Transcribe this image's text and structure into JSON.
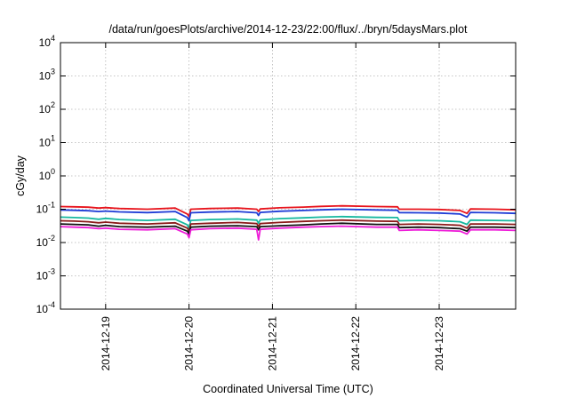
{
  "chart_data": {
    "type": "line",
    "title": "/data/run/goesPlots/archive/2014-12-23/22:00/flux/../bryn/5daysMars.plot",
    "xlabel": "Coordinated Universal Time (UTC)",
    "ylabel": "cGy/day",
    "y_scale": "log",
    "ylim_exponents": [
      -4,
      4
    ],
    "y_ticks": [
      {
        "base": "10",
        "exp": "-4",
        "value": -4
      },
      {
        "base": "10",
        "exp": "-3",
        "value": -3
      },
      {
        "base": "10",
        "exp": "-2",
        "value": -2
      },
      {
        "base": "10",
        "exp": "-1",
        "value": -1
      },
      {
        "base": "10",
        "exp": "0",
        "value": 0
      },
      {
        "base": "10",
        "exp": "1",
        "value": 1
      },
      {
        "base": "10",
        "exp": "2",
        "value": 2
      },
      {
        "base": "10",
        "exp": "3",
        "value": 3
      },
      {
        "base": "10",
        "exp": "4",
        "value": 4
      }
    ],
    "xlim": [
      "2014-12-18T11:00",
      "2014-12-23T22:00"
    ],
    "x_ticks": [
      {
        "label": "2014-12-19",
        "value": "2014-12-19T00:00"
      },
      {
        "label": "2014-12-20",
        "value": "2014-12-20T00:00"
      },
      {
        "label": "2014-12-21",
        "value": "2014-12-21T00:00"
      },
      {
        "label": "2014-12-22",
        "value": "2014-12-22T00:00"
      },
      {
        "label": "2014-12-23",
        "value": "2014-12-23T00:00"
      }
    ],
    "grid": true,
    "series": [
      {
        "color": "#e8141c",
        "x": [
          "2014-12-18T11:00",
          "2014-12-18T15:00",
          "2014-12-18T19:00",
          "2014-12-18T22:00",
          "2014-12-19T00:00",
          "2014-12-19T04:00",
          "2014-12-19T12:00",
          "2014-12-19T20:00",
          "2014-12-19T23:30",
          "2014-12-20T00:00",
          "2014-12-20T00:30",
          "2014-12-20T06:00",
          "2014-12-20T14:00",
          "2014-12-20T19:30",
          "2014-12-20T20:00",
          "2014-12-20T20:30",
          "2014-12-21T02:00",
          "2014-12-21T09:00",
          "2014-12-21T14:00",
          "2014-12-21T20:00",
          "2014-12-22T06:00",
          "2014-12-22T12:00",
          "2014-12-22T12:30",
          "2014-12-22T18:00",
          "2014-12-23T00:00",
          "2014-12-23T06:00",
          "2014-12-23T08:00",
          "2014-12-23T09:00",
          "2014-12-23T16:00",
          "2014-12-23T22:00"
        ],
        "y": [
          0.12,
          0.118,
          0.115,
          0.108,
          0.112,
          0.105,
          0.1,
          0.108,
          0.072,
          0.06,
          0.1,
          0.105,
          0.108,
          0.1,
          0.085,
          0.102,
          0.11,
          0.116,
          0.122,
          0.126,
          0.12,
          0.118,
          0.1,
          0.1,
          0.098,
          0.092,
          0.075,
          0.102,
          0.1,
          0.096
        ]
      },
      {
        "color": "#1e3cd6",
        "x": [
          "2014-12-18T11:00",
          "2014-12-18T15:00",
          "2014-12-18T19:00",
          "2014-12-18T22:00",
          "2014-12-19T00:00",
          "2014-12-19T04:00",
          "2014-12-19T12:00",
          "2014-12-19T20:00",
          "2014-12-19T23:30",
          "2014-12-20T00:00",
          "2014-12-20T00:30",
          "2014-12-20T06:00",
          "2014-12-20T14:00",
          "2014-12-20T19:30",
          "2014-12-20T20:00",
          "2014-12-20T20:30",
          "2014-12-21T02:00",
          "2014-12-21T09:00",
          "2014-12-21T14:00",
          "2014-12-21T20:00",
          "2014-12-22T06:00",
          "2014-12-22T12:00",
          "2014-12-22T12:30",
          "2014-12-22T18:00",
          "2014-12-23T00:00",
          "2014-12-23T06:00",
          "2014-12-23T08:00",
          "2014-12-23T09:00",
          "2014-12-23T16:00",
          "2014-12-23T22:00"
        ],
        "y": [
          0.095,
          0.093,
          0.09,
          0.085,
          0.088,
          0.083,
          0.079,
          0.085,
          0.056,
          0.045,
          0.078,
          0.082,
          0.085,
          0.078,
          0.065,
          0.08,
          0.087,
          0.092,
          0.096,
          0.1,
          0.095,
          0.093,
          0.079,
          0.078,
          0.077,
          0.072,
          0.058,
          0.08,
          0.078,
          0.075
        ]
      },
      {
        "color": "#16b8a0",
        "x": [
          "2014-12-18T11:00",
          "2014-12-18T15:00",
          "2014-12-18T19:00",
          "2014-12-18T22:00",
          "2014-12-19T00:00",
          "2014-12-19T04:00",
          "2014-12-19T12:00",
          "2014-12-19T20:00",
          "2014-12-19T23:30",
          "2014-12-20T00:00",
          "2014-12-20T00:30",
          "2014-12-20T06:00",
          "2014-12-20T14:00",
          "2014-12-20T19:30",
          "2014-12-20T20:00",
          "2014-12-20T20:30",
          "2014-12-21T02:00",
          "2014-12-21T09:00",
          "2014-12-21T14:00",
          "2014-12-21T20:00",
          "2014-12-22T06:00",
          "2014-12-22T12:00",
          "2014-12-22T12:30",
          "2014-12-22T18:00",
          "2014-12-23T00:00",
          "2014-12-23T06:00",
          "2014-12-23T08:00",
          "2014-12-23T09:00",
          "2014-12-23T16:00",
          "2014-12-23T22:00"
        ],
        "y": [
          0.058,
          0.056,
          0.054,
          0.05,
          0.053,
          0.049,
          0.046,
          0.05,
          0.034,
          0.027,
          0.046,
          0.049,
          0.051,
          0.047,
          0.038,
          0.048,
          0.052,
          0.055,
          0.058,
          0.06,
          0.057,
          0.056,
          0.045,
          0.046,
          0.045,
          0.042,
          0.035,
          0.047,
          0.046,
          0.045
        ]
      },
      {
        "color": "#8b1a1a",
        "x": [
          "2014-12-18T11:00",
          "2014-12-18T15:00",
          "2014-12-18T19:00",
          "2014-12-18T22:00",
          "2014-12-19T00:00",
          "2014-12-19T04:00",
          "2014-12-19T12:00",
          "2014-12-19T20:00",
          "2014-12-19T23:30",
          "2014-12-20T00:00",
          "2014-12-20T00:30",
          "2014-12-20T06:00",
          "2014-12-20T14:00",
          "2014-12-20T19:30",
          "2014-12-20T20:00",
          "2014-12-20T20:30",
          "2014-12-21T02:00",
          "2014-12-21T09:00",
          "2014-12-21T14:00",
          "2014-12-21T20:00",
          "2014-12-22T06:00",
          "2014-12-22T12:00",
          "2014-12-22T12:30",
          "2014-12-22T18:00",
          "2014-12-23T00:00",
          "2014-12-23T06:00",
          "2014-12-23T08:00",
          "2014-12-23T09:00",
          "2014-12-23T16:00",
          "2014-12-23T22:00"
        ],
        "y": [
          0.045,
          0.044,
          0.042,
          0.039,
          0.041,
          0.038,
          0.036,
          0.039,
          0.027,
          0.022,
          0.036,
          0.038,
          0.04,
          0.037,
          0.03,
          0.037,
          0.04,
          0.043,
          0.045,
          0.047,
          0.044,
          0.043,
          0.035,
          0.036,
          0.035,
          0.033,
          0.027,
          0.036,
          0.036,
          0.035
        ]
      },
      {
        "color": "#111111",
        "x": [
          "2014-12-18T11:00",
          "2014-12-18T15:00",
          "2014-12-18T19:00",
          "2014-12-18T22:00",
          "2014-12-19T00:00",
          "2014-12-19T04:00",
          "2014-12-19T12:00",
          "2014-12-19T20:00",
          "2014-12-19T23:30",
          "2014-12-20T00:00",
          "2014-12-20T00:30",
          "2014-12-20T06:00",
          "2014-12-20T14:00",
          "2014-12-20T19:30",
          "2014-12-20T20:00",
          "2014-12-20T20:30",
          "2014-12-21T02:00",
          "2014-12-21T09:00",
          "2014-12-21T14:00",
          "2014-12-21T20:00",
          "2014-12-22T06:00",
          "2014-12-22T12:00",
          "2014-12-22T12:30",
          "2014-12-22T18:00",
          "2014-12-23T00:00",
          "2014-12-23T06:00",
          "2014-12-23T08:00",
          "2014-12-23T09:00",
          "2014-12-23T16:00",
          "2014-12-23T22:00"
        ],
        "y": [
          0.036,
          0.035,
          0.034,
          0.031,
          0.033,
          0.03,
          0.029,
          0.031,
          0.022,
          0.018,
          0.029,
          0.031,
          0.032,
          0.03,
          0.024,
          0.03,
          0.032,
          0.034,
          0.036,
          0.038,
          0.035,
          0.035,
          0.028,
          0.029,
          0.028,
          0.026,
          0.022,
          0.029,
          0.029,
          0.028
        ]
      },
      {
        "color": "#ee1cd8",
        "x": [
          "2014-12-18T11:00",
          "2014-12-18T15:00",
          "2014-12-18T19:00",
          "2014-12-18T22:00",
          "2014-12-19T00:00",
          "2014-12-19T04:00",
          "2014-12-19T12:00",
          "2014-12-19T20:00",
          "2014-12-19T23:30",
          "2014-12-20T00:00",
          "2014-12-20T00:30",
          "2014-12-20T06:00",
          "2014-12-20T14:00",
          "2014-12-20T19:30",
          "2014-12-20T20:00",
          "2014-12-20T20:30",
          "2014-12-21T02:00",
          "2014-12-21T09:00",
          "2014-12-21T14:00",
          "2014-12-21T20:00",
          "2014-12-22T06:00",
          "2014-12-22T12:00",
          "2014-12-22T12:30",
          "2014-12-22T18:00",
          "2014-12-23T00:00",
          "2014-12-23T06:00",
          "2014-12-23T08:00",
          "2014-12-23T09:00",
          "2014-12-23T16:00",
          "2014-12-23T22:00"
        ],
        "y": [
          0.03,
          0.029,
          0.028,
          0.026,
          0.027,
          0.025,
          0.024,
          0.026,
          0.018,
          0.014,
          0.024,
          0.026,
          0.027,
          0.025,
          0.012,
          0.025,
          0.027,
          0.029,
          0.03,
          0.031,
          0.029,
          0.029,
          0.023,
          0.024,
          0.023,
          0.022,
          0.018,
          0.024,
          0.024,
          0.023
        ]
      }
    ]
  }
}
